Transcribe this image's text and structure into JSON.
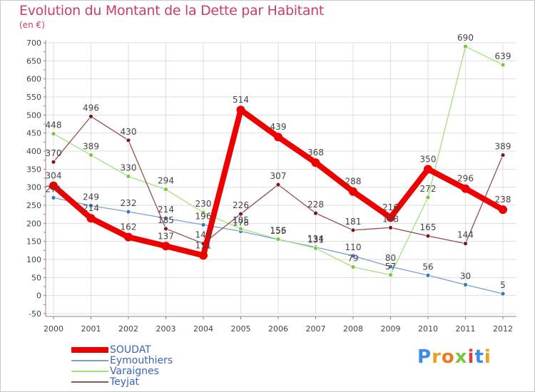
{
  "header": {
    "title": "Evolution du Montant de la Dette par Habitant",
    "subtitle": "(en €)"
  },
  "logo": {
    "text": "Proxiti",
    "letter_colors": [
      "#3c8ce6",
      "#e8a020",
      "#f07820",
      "#78c83c",
      "#e03c3c",
      "#3c8ce6",
      "#e8a020"
    ]
  },
  "colors": {
    "title": "#c83c6e",
    "legend_text": "#3c64b4",
    "grid": "#dddddd",
    "axis": "#888888",
    "tick_marks": "#e06070",
    "text": "#444444"
  },
  "chart_data": {
    "type": "line",
    "x": [
      "2000",
      "2001",
      "2002",
      "2003",
      "2004",
      "2005",
      "2006",
      "2007",
      "2008",
      "2009",
      "2010",
      "2011",
      "2012"
    ],
    "ylim": [
      -50,
      700
    ],
    "yticks": [
      -50,
      0,
      50,
      100,
      150,
      200,
      250,
      300,
      350,
      400,
      450,
      500,
      550,
      600,
      650,
      700
    ],
    "grid": true,
    "legend_position": "bottom-left",
    "series": [
      {
        "name": "SOUDAT",
        "color": "#ee0000",
        "marker_color": "#ee0000",
        "width": 8,
        "marker_r": 6,
        "values": [
          304,
          214,
          162,
          137,
          111,
          514,
          439,
          368,
          288,
          216,
          350,
          296,
          238
        ]
      },
      {
        "name": "Eymouthiers",
        "color": "#78a0d0",
        "marker_color": "#3c78c8",
        "width": 1.3,
        "marker_r": 3,
        "values": [
          271,
          249,
          232,
          214,
          196,
          178,
          155,
          134,
          110,
          80,
          56,
          30,
          5
        ]
      },
      {
        "name": "Varaignes",
        "color": "#a0e080",
        "marker_color": "#78c83c",
        "width": 1.3,
        "marker_r": 3,
        "values": [
          448,
          389,
          330,
          294,
          230,
          185,
          156,
          131,
          79,
          57,
          272,
          690,
          639
        ]
      },
      {
        "name": "Teyjat",
        "color": "#905050",
        "marker_color": "#7a1a1a",
        "width": 1.3,
        "marker_r": 3,
        "values": [
          370,
          496,
          430,
          185,
          144,
          226,
          307,
          228,
          181,
          188,
          165,
          144,
          389
        ]
      }
    ]
  }
}
